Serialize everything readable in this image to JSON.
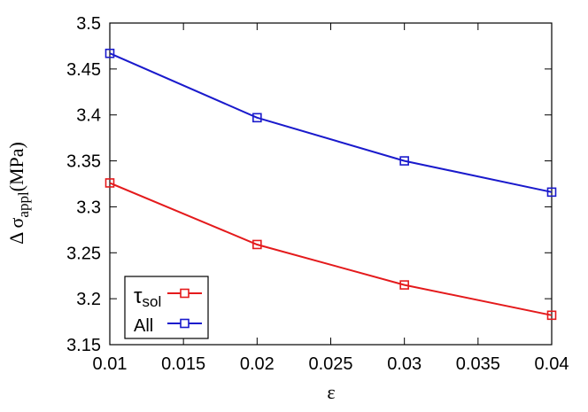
{
  "chart_data": {
    "type": "line",
    "x": [
      0.01,
      0.02,
      0.03,
      0.04
    ],
    "series": [
      {
        "name": "τsol",
        "name_main": "τ",
        "name_sub": "sol",
        "color": "#e41a1c",
        "marker": "open-square",
        "values": [
          3.326,
          3.259,
          3.215,
          3.182
        ]
      },
      {
        "name": "All",
        "color": "#1a1acc",
        "marker": "open-square",
        "values": [
          3.467,
          3.397,
          3.35,
          3.316
        ]
      }
    ],
    "xlim": [
      0.01,
      0.04
    ],
    "ylim": [
      3.15,
      3.5
    ],
    "xticks": [
      "0.01",
      "0.015",
      "0.02",
      "0.025",
      "0.03",
      "0.035",
      "0.04"
    ],
    "yticks": [
      "3.15",
      "3.2",
      "3.25",
      "3.3",
      "3.35",
      "3.4",
      "3.45",
      "3.5"
    ],
    "xlabel": "ε",
    "ylabel": "Δ σappl(MPa)",
    "ylabel_parts": {
      "pre": "Δ σ",
      "sub": "appl",
      "post": "(MPa)"
    },
    "grid": false,
    "legend_position": "bottom-left"
  }
}
